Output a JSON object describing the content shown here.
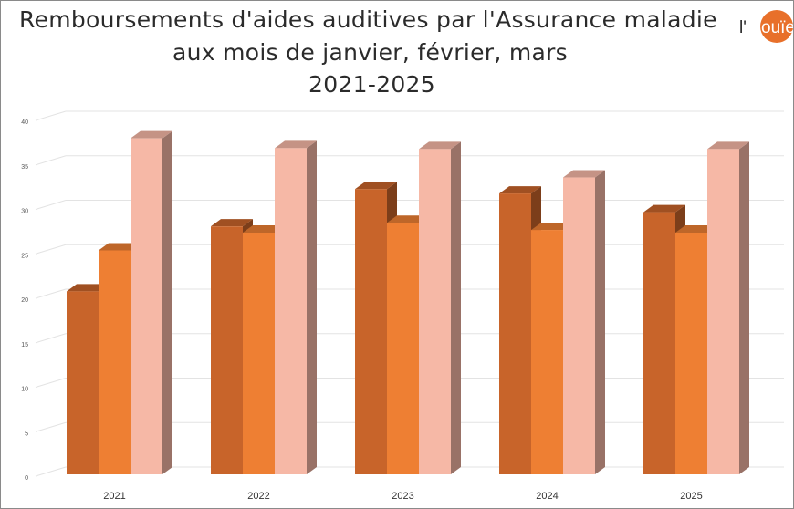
{
  "title": {
    "line1": "Remboursements d'aides auditives par l'Assurance maladie",
    "line2": "aux mois de janvier, février, mars",
    "line3": "2021-2025"
  },
  "logo": {
    "text": "l'ouïe",
    "color": "#e8702a"
  },
  "colors": {
    "janvier": "#c8642a",
    "fevrier": "#ee7f33",
    "mars": "#f6b8a6",
    "grid": "#e3e3e3",
    "axis_text": "#555555"
  },
  "chart_data": {
    "type": "bar",
    "style": "3d-clustered",
    "categories": [
      "2021",
      "2022",
      "2023",
      "2024",
      "2025"
    ],
    "series": [
      {
        "values": [
          21.4,
          28.7,
          32.9,
          32.4,
          30.3
        ]
      },
      {
        "values": [
          26.0,
          28.0,
          29.1,
          28.3,
          28.0
        ]
      },
      {
        "values": [
          38.6,
          37.5,
          37.4,
          34.2,
          37.4
        ]
      }
    ],
    "ylim": [
      0,
      40
    ],
    "yticks": [
      "0",
      "5",
      "10",
      "15",
      "20",
      "25",
      "30",
      "35",
      "40"
    ],
    "grid": true,
    "legend": "none",
    "xlabel": "",
    "ylabel": ""
  }
}
